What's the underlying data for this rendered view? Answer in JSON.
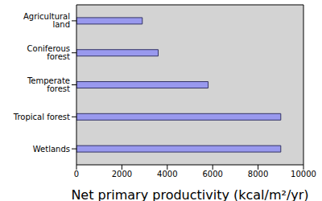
{
  "chart_data": {
    "type": "bar",
    "orientation": "horizontal",
    "categories": [
      "Agricultural land",
      "Coniferous forest",
      "Temperate forest",
      "Tropical forest",
      "Wetlands"
    ],
    "values": [
      2900,
      3600,
      5800,
      9000,
      9000
    ],
    "color": "#9999ee",
    "xlabel": "Net primary productivity (kcal/m²/yr)",
    "xlim": [
      0,
      10000
    ],
    "xticks": [
      0,
      2000,
      4000,
      6000,
      8000,
      10000
    ],
    "grid": false
  }
}
